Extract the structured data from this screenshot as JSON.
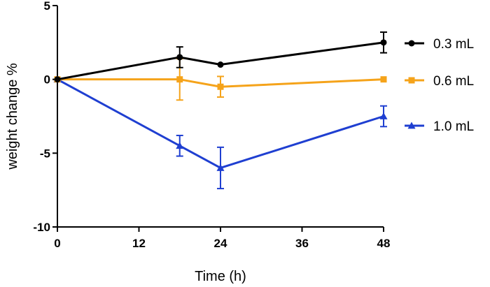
{
  "chart_data": {
    "type": "line",
    "title": "",
    "xlabel": "Time (h)",
    "ylabel": "weight change %",
    "xlim": [
      0,
      48
    ],
    "ylim": [
      -10,
      5
    ],
    "xticks": [
      0,
      12,
      24,
      36,
      48
    ],
    "yticks": [
      5,
      0,
      -5,
      -10
    ],
    "legend_position": "right",
    "series": [
      {
        "name": "0.3 mL",
        "color": "#000000",
        "marker": "circle",
        "points": [
          {
            "x": 0,
            "y": 0,
            "err": 0
          },
          {
            "x": 18,
            "y": 1.5,
            "err": 0.7
          },
          {
            "x": 24,
            "y": 1.0,
            "err": 0
          },
          {
            "x": 48,
            "y": 2.5,
            "err": 0.7
          }
        ]
      },
      {
        "name": "0.6 mL",
        "color": "#F5A31A",
        "marker": "square",
        "points": [
          {
            "x": 0,
            "y": 0,
            "err": 0
          },
          {
            "x": 18,
            "y": 0,
            "err": 1.4
          },
          {
            "x": 24,
            "y": -0.5,
            "err": 0.7
          },
          {
            "x": 48,
            "y": 0,
            "err": 0
          }
        ]
      },
      {
        "name": "1.0 mL",
        "color": "#1F3FD1",
        "marker": "triangle",
        "points": [
          {
            "x": 0,
            "y": 0,
            "err": 0
          },
          {
            "x": 18,
            "y": -4.5,
            "err": 0.7
          },
          {
            "x": 24,
            "y": -6.0,
            "err": 1.4
          },
          {
            "x": 48,
            "y": -2.5,
            "err": 0.7
          }
        ]
      }
    ]
  }
}
